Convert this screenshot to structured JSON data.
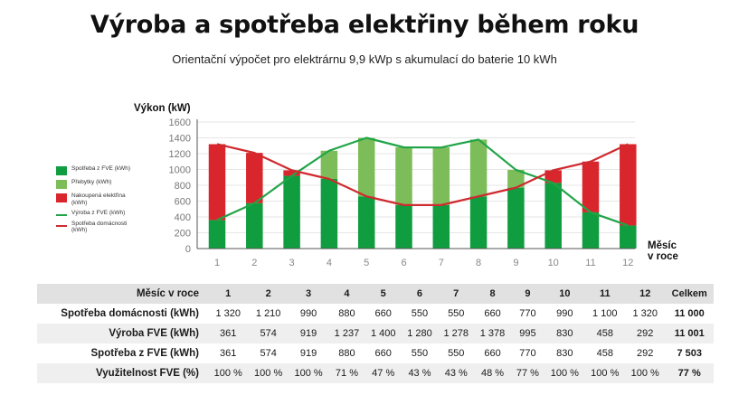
{
  "title": "Výroba a spotřeba elektřiny během roku",
  "subtitle": "Orientační výpočet pro elektrárnu 9,9 kWp s akumulací do baterie 10 kWh",
  "colors": {
    "green_dark": "#0f9d3f",
    "green_light": "#7cbd5a",
    "red": "#d9262c",
    "line_green": "#21a447",
    "line_red": "#cf2a2f",
    "header_bg": "#e1e1e1"
  },
  "chart_data": {
    "type": "area",
    "ylabel": "Výkon (kW)",
    "xlabel": "Měsíc v roce",
    "xlabel_lines": [
      "Měsíc",
      "v roce"
    ],
    "ylim": [
      0,
      1600
    ],
    "yticks": [
      0,
      200,
      400,
      600,
      800,
      1000,
      1200,
      1400,
      1600
    ],
    "categories": [
      "1",
      "2",
      "3",
      "4",
      "5",
      "6",
      "7",
      "8",
      "9",
      "10",
      "11",
      "12"
    ],
    "series": [
      {
        "name": "Spotřeba domácnosti (kWh)",
        "key": "consumption",
        "values": [
          1320,
          1210,
          990,
          880,
          660,
          550,
          550,
          660,
          770,
          990,
          1100,
          1320
        ]
      },
      {
        "name": "Výroba z FVE (kWh)",
        "key": "production",
        "values": [
          361,
          574,
          919,
          1237,
          1400,
          1280,
          1278,
          1378,
          995,
          830,
          458,
          292
        ]
      }
    ],
    "legend": [
      {
        "label": "Spotřeba z FVE (kWh)",
        "kind": "box",
        "color": "#0f9d3f"
      },
      {
        "label": "Přebytky (kWh)",
        "kind": "box",
        "color": "#7cbd5a"
      },
      {
        "label": "Nakoupená elektřina (kWh)",
        "kind": "box",
        "color": "#d9262c"
      },
      {
        "label": "Výroba z FVE (kWh)",
        "kind": "line",
        "color": "#21a447"
      },
      {
        "label": "Spotřeba domácnosti (kWh)",
        "kind": "line",
        "color": "#cf2a2f"
      }
    ],
    "legend_position": "left"
  },
  "table": {
    "header_label": "Měsíc v roce",
    "months": [
      "1",
      "2",
      "3",
      "4",
      "5",
      "6",
      "7",
      "8",
      "9",
      "10",
      "11",
      "12"
    ],
    "total_label": "Celkem",
    "rows": [
      {
        "label": "Spotřeba domácnosti (kWh)",
        "values": [
          "1 320",
          "1 210",
          "990",
          "880",
          "660",
          "550",
          "550",
          "660",
          "770",
          "990",
          "1 100",
          "1 320"
        ],
        "total": "11 000"
      },
      {
        "label": "Výroba FVE (kWh)",
        "values": [
          "361",
          "574",
          "919",
          "1 237",
          "1 400",
          "1 280",
          "1 278",
          "1 378",
          "995",
          "830",
          "458",
          "292"
        ],
        "total": "11 001"
      },
      {
        "label": "Spotřeba z FVE (kWh)",
        "values": [
          "361",
          "574",
          "919",
          "880",
          "660",
          "550",
          "550",
          "660",
          "770",
          "830",
          "458",
          "292"
        ],
        "total": "7 503"
      },
      {
        "label": "Využitelnost FVE (%)",
        "values": [
          "100 %",
          "100 %",
          "100 %",
          "71 %",
          "47 %",
          "43 %",
          "43 %",
          "48 %",
          "77 %",
          "100 %",
          "100 %",
          "100 %"
        ],
        "total": "77 %"
      }
    ]
  }
}
